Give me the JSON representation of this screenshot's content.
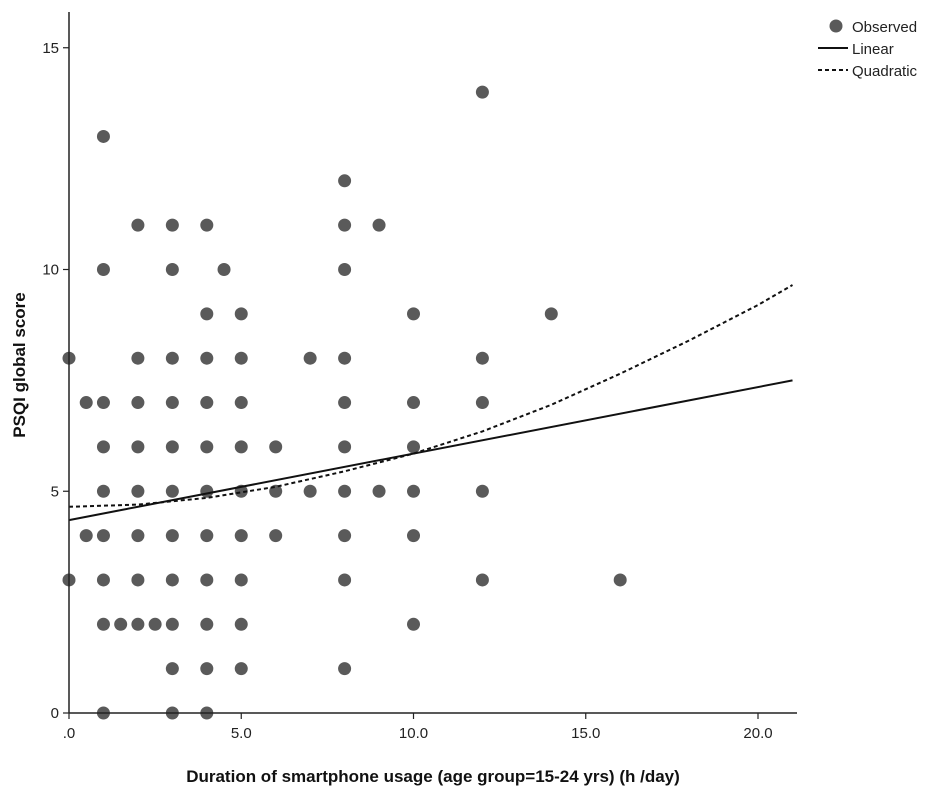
{
  "chart_data": {
    "type": "scatter",
    "xlabel": "Duration of smartphone usage (age group=15-24 yrs) (h /day)",
    "ylabel": "PSQI global score",
    "xlim": [
      0,
      21
    ],
    "ylim": [
      0,
      15.5
    ],
    "x_ticks": [
      0,
      5,
      10,
      15,
      20
    ],
    "x_tick_labels": [
      ".0",
      "5.0",
      "10.0",
      "15.0",
      "20.0"
    ],
    "y_ticks": [
      0,
      5,
      10,
      15
    ],
    "y_tick_labels": [
      "0",
      "5",
      "10",
      "15"
    ],
    "grid": false,
    "legend_position": "top-right",
    "colors": {
      "points": "#5a5a5a",
      "lines": "#111111"
    },
    "legend": [
      {
        "label": "Observed",
        "kind": "marker"
      },
      {
        "label": "Linear",
        "kind": "solid-line"
      },
      {
        "label": "Quadratic",
        "kind": "dashed-line"
      }
    ],
    "series": [
      {
        "type": "scatter",
        "points": [
          [
            0,
            8
          ],
          [
            0,
            3
          ],
          [
            0.5,
            7
          ],
          [
            0.5,
            4
          ],
          [
            1,
            13
          ],
          [
            1,
            10
          ],
          [
            1,
            7
          ],
          [
            1,
            6
          ],
          [
            1,
            5
          ],
          [
            1,
            4
          ],
          [
            1,
            3
          ],
          [
            1,
            2
          ],
          [
            1,
            0
          ],
          [
            1.5,
            2
          ],
          [
            2,
            11
          ],
          [
            2,
            8
          ],
          [
            2,
            7
          ],
          [
            2,
            6
          ],
          [
            2,
            5
          ],
          [
            2,
            4
          ],
          [
            2,
            3
          ],
          [
            2,
            2
          ],
          [
            2.5,
            2
          ],
          [
            3,
            11
          ],
          [
            3,
            10
          ],
          [
            3,
            8
          ],
          [
            3,
            7
          ],
          [
            3,
            6
          ],
          [
            3,
            5
          ],
          [
            3,
            4
          ],
          [
            3,
            3
          ],
          [
            3,
            2
          ],
          [
            3,
            1
          ],
          [
            3,
            0
          ],
          [
            4,
            11
          ],
          [
            4,
            9
          ],
          [
            4,
            8
          ],
          [
            4,
            7
          ],
          [
            4,
            6
          ],
          [
            4,
            5
          ],
          [
            4,
            4
          ],
          [
            4,
            3
          ],
          [
            4,
            2
          ],
          [
            4,
            1
          ],
          [
            4,
            0
          ],
          [
            4.5,
            10
          ],
          [
            5,
            9
          ],
          [
            5,
            8
          ],
          [
            5,
            7
          ],
          [
            5,
            6
          ],
          [
            5,
            5
          ],
          [
            5,
            4
          ],
          [
            5,
            3
          ],
          [
            5,
            2
          ],
          [
            5,
            1
          ],
          [
            6,
            6
          ],
          [
            6,
            5
          ],
          [
            6,
            4
          ],
          [
            7,
            8
          ],
          [
            7,
            5
          ],
          [
            8,
            12
          ],
          [
            8,
            11
          ],
          [
            8,
            10
          ],
          [
            8,
            8
          ],
          [
            8,
            7
          ],
          [
            8,
            6
          ],
          [
            8,
            5
          ],
          [
            8,
            4
          ],
          [
            8,
            3
          ],
          [
            8,
            1
          ],
          [
            9,
            11
          ],
          [
            9,
            5
          ],
          [
            10,
            9
          ],
          [
            10,
            7
          ],
          [
            10,
            6
          ],
          [
            10,
            5
          ],
          [
            10,
            4
          ],
          [
            10,
            2
          ],
          [
            12,
            14
          ],
          [
            12,
            8
          ],
          [
            12,
            7
          ],
          [
            12,
            5
          ],
          [
            12,
            3
          ],
          [
            14,
            9
          ],
          [
            16,
            3
          ]
        ]
      },
      {
        "type": "line",
        "style": "solid",
        "name": "Linear",
        "x": [
          0,
          21
        ],
        "y": [
          4.35,
          7.5
        ]
      },
      {
        "type": "line",
        "style": "dashed",
        "name": "Quadratic",
        "x": [
          0,
          2,
          4,
          6,
          8,
          10,
          12,
          14,
          16,
          18,
          20,
          21
        ],
        "y": [
          4.65,
          4.7,
          4.85,
          5.1,
          5.45,
          5.85,
          6.35,
          6.95,
          7.65,
          8.4,
          9.2,
          9.65
        ]
      }
    ]
  }
}
